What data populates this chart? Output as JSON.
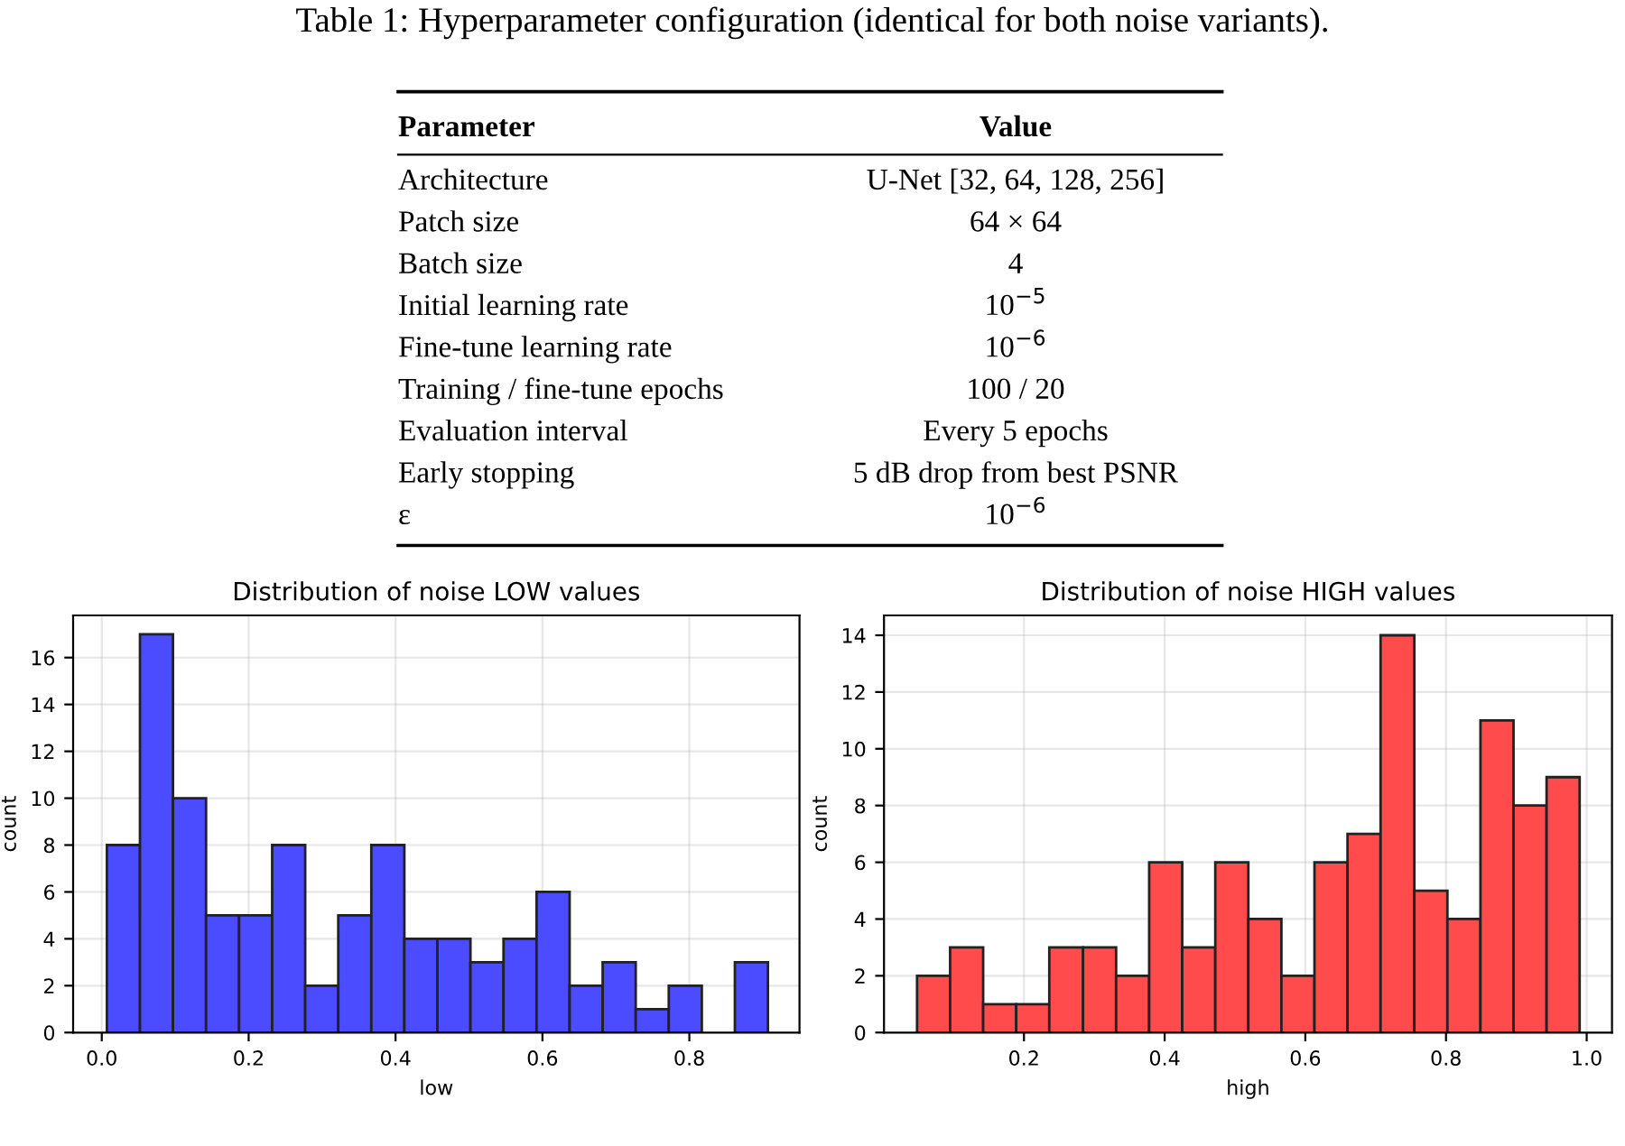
{
  "chart_data": [
    {
      "type": "other",
      "title": "Table 1: Hyperparameter configuration (identical for both noise variants).",
      "annotations": [
        "Parameter",
        "Value",
        "Architecture",
        "U-Net [32, 64, 128, 256]",
        "Patch size",
        "64 × 64",
        "Batch size",
        "4",
        "Initial learning rate",
        "10$^{−5}$",
        "Fine-tune learning rate",
        "10$^{−6}$",
        "Training / fine-tune epochs",
        "100 / 20",
        "Evaluation interval",
        "Every 5 epochs",
        "Early stopping",
        "5 dB drop from best PSNR",
        "ε",
        "10$^{−6}$"
      ]
    },
    {
      "type": "histogram",
      "title": "Distribution of noise LOW values",
      "xlabel": "low",
      "ylabel": "count",
      "color": "#4b4bff",
      "bins": [
        0.007,
        0.052,
        0.097,
        0.142,
        0.187,
        0.232,
        0.277,
        0.322,
        0.367,
        0.412,
        0.457,
        0.502,
        0.547,
        0.592,
        0.637,
        0.682,
        0.727,
        0.772,
        0.817,
        0.862,
        0.907
      ],
      "values": [
        8,
        17,
        10,
        5,
        5,
        8,
        2,
        5,
        8,
        4,
        4,
        3,
        4,
        6,
        2,
        3,
        1,
        2,
        0,
        3
      ],
      "xlim": [
        -0.039,
        0.95
      ],
      "ylim": [
        0,
        17.8
      ],
      "xticks": [
        {
          "value": 0,
          "label": "0.0"
        },
        0.2,
        0.4,
        0.6,
        0.8
      ],
      "yticks": [
        0,
        2,
        4,
        6,
        8,
        10,
        12,
        14,
        16
      ],
      "grid": true
    },
    {
      "type": "histogram",
      "title": "Distribution of noise HIGH values",
      "xlabel": "high",
      "ylabel": "count",
      "color": "#ff4b4b",
      "bins": [
        0.048,
        0.095,
        0.142,
        0.189,
        0.236,
        0.284,
        0.331,
        0.378,
        0.425,
        0.472,
        0.519,
        0.566,
        0.613,
        0.66,
        0.707,
        0.755,
        0.802,
        0.849,
        0.896,
        0.943,
        0.99
      ],
      "values": [
        2,
        3,
        1,
        1,
        3,
        3,
        2,
        6,
        3,
        6,
        4,
        2,
        6,
        7,
        14,
        5,
        4,
        11,
        8,
        9
      ],
      "xlim": [
        0.001,
        1.036
      ],
      "ylim": [
        0,
        14.7
      ],
      "xticks": [
        0.2,
        0.4,
        0.6,
        0.8,
        {
          "value": 1,
          "label": "1.0"
        }
      ],
      "yticks": [
        0,
        2,
        4,
        6,
        8,
        10,
        12,
        14
      ],
      "grid": true
    }
  ]
}
